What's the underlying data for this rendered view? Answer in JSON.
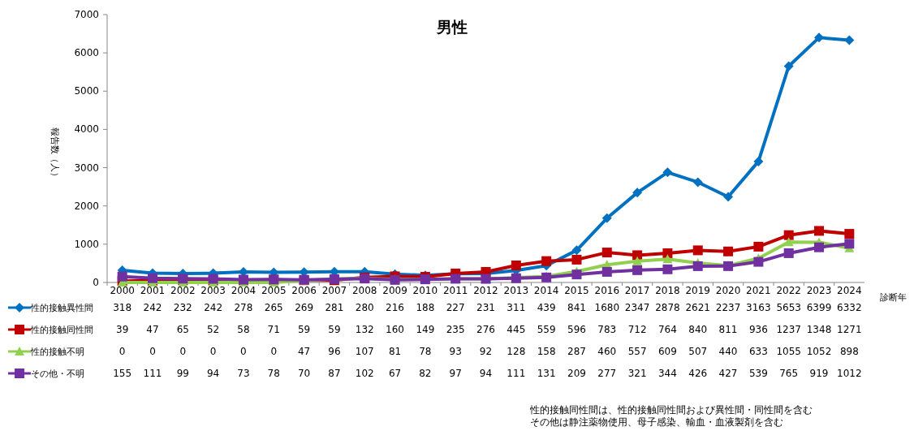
{
  "chart_data": {
    "type": "line",
    "title": "男性",
    "xlabel": "診断年",
    "ylabel": "報告数（人）",
    "categories": [
      "2000",
      "2001",
      "2002",
      "2003",
      "2004",
      "2005",
      "2006",
      "2007",
      "2008",
      "2009",
      "2010",
      "2011",
      "2012",
      "2013",
      "2014",
      "2015",
      "2016",
      "2017",
      "2018",
      "2019",
      "2020",
      "2021",
      "2022",
      "2023",
      "2024"
    ],
    "ylim": [
      0,
      7000
    ],
    "yticks": [
      0,
      1000,
      2000,
      3000,
      4000,
      5000,
      6000,
      7000
    ],
    "series": [
      {
        "name": "性的接触異性間",
        "color": "#0070c0",
        "marker": "diamond",
        "values": [
          318,
          242,
          232,
          242,
          278,
          265,
          269,
          281,
          280,
          216,
          188,
          227,
          231,
          311,
          439,
          841,
          1680,
          2347,
          2878,
          2621,
          2237,
          3163,
          5653,
          6399,
          6332
        ]
      },
      {
        "name": "性的接触同性間",
        "color": "#c00000",
        "marker": "square",
        "values": [
          39,
          47,
          65,
          52,
          58,
          71,
          59,
          59,
          132,
          160,
          149,
          235,
          276,
          445,
          559,
          596,
          783,
          712,
          764,
          840,
          811,
          936,
          1237,
          1348,
          1271
        ]
      },
      {
        "name": "性的接触不明",
        "color": "#92d050",
        "marker": "triangle",
        "values": [
          0,
          0,
          0,
          0,
          0,
          0,
          47,
          96,
          107,
          81,
          78,
          93,
          92,
          128,
          158,
          287,
          460,
          557,
          609,
          507,
          440,
          633,
          1055,
          1052,
          898
        ]
      },
      {
        "name": "その他・不明",
        "color": "#7030a0",
        "marker": "square",
        "values": [
          155,
          111,
          99,
          94,
          73,
          78,
          70,
          87,
          102,
          67,
          82,
          97,
          94,
          111,
          131,
          209,
          277,
          321,
          344,
          426,
          427,
          539,
          765,
          919,
          1012
        ]
      }
    ],
    "data_labels": true,
    "legend": "bottom left",
    "grid": false,
    "annotations": [
      "性的接触同性間は、性的接触同性間および異性間・同性間を含む",
      "その他は静注薬物使用、母子感染、輸血・血液製剤を含む"
    ]
  }
}
